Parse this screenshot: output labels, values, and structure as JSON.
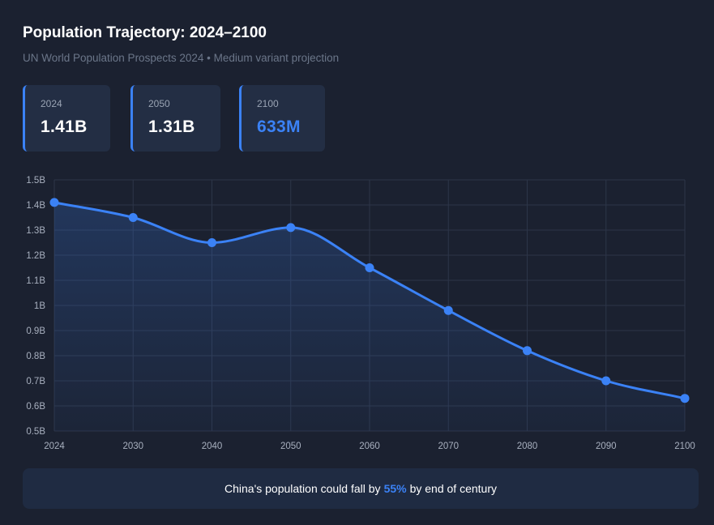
{
  "header": {
    "title": "Population Trajectory: 2024–2100",
    "subtitle": "UN World Population Prospects 2024 • Medium variant projection"
  },
  "stats": [
    {
      "year": "2024",
      "value": "1.41B"
    },
    {
      "year": "2050",
      "value": "1.31B"
    },
    {
      "year": "2100",
      "value": "633M"
    }
  ],
  "colors": {
    "accent": "#3b82f6",
    "background": "#1b2130",
    "card": "#232e44",
    "grid": "#2c3548"
  },
  "chart_data": {
    "type": "area",
    "title": "",
    "xlabel": "",
    "ylabel": "",
    "x": [
      2024,
      2030,
      2040,
      2050,
      2060,
      2070,
      2080,
      2090,
      2100
    ],
    "x_ticks": [
      "2024",
      "2030",
      "2040",
      "2050",
      "2060",
      "2070",
      "2080",
      "2090",
      "2100"
    ],
    "values": [
      1.41,
      1.35,
      1.25,
      1.31,
      1.15,
      0.98,
      0.82,
      0.7,
      0.63
    ],
    "ylim": [
      0.5,
      1.5
    ],
    "y_ticks": [
      "0.5B",
      "0.6B",
      "0.7B",
      "0.8B",
      "0.9B",
      "1B",
      "1.1B",
      "1.2B",
      "1.3B",
      "1.4B",
      "1.5B"
    ],
    "grid": true,
    "legend": "none"
  },
  "footer": {
    "prefix": "China's population could fall by",
    "highlight": "55%",
    "suffix": "by end of century"
  }
}
